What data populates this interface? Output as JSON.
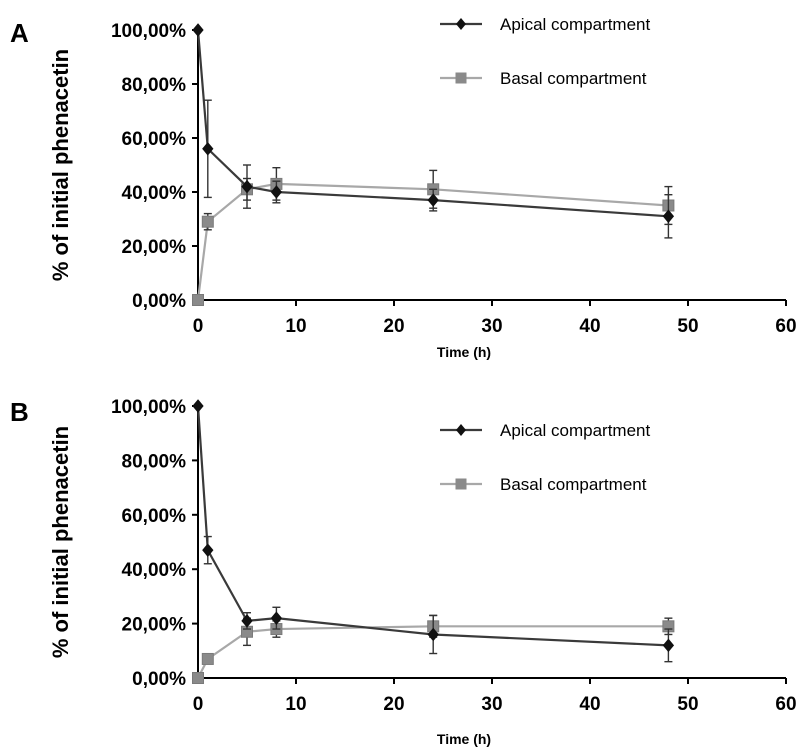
{
  "chart_data": [
    {
      "type": "line",
      "panel_label": "A",
      "xlabel": "Time (h)",
      "ylabel": "% of initial phenacetin",
      "xlim": [
        0,
        60
      ],
      "ylim": [
        0,
        100
      ],
      "x_ticks": [
        "0",
        "10",
        "20",
        "30",
        "40",
        "50",
        "60"
      ],
      "y_ticks": [
        "0,00%",
        "20,00%",
        "40,00%",
        "60,00%",
        "80,00%",
        "100,00%"
      ],
      "legend_position": "top-right",
      "grid": false,
      "series": [
        {
          "name": "Apical compartment",
          "color": "#3a3a3a",
          "marker": "diamond",
          "x": [
            0,
            1,
            5,
            8,
            24,
            48
          ],
          "values": [
            100,
            56,
            42,
            40,
            37,
            31
          ],
          "errors": [
            0,
            18,
            8,
            4,
            4,
            8
          ]
        },
        {
          "name": "Basal compartment",
          "color": "#a8a8a8",
          "marker": "square",
          "x": [
            0,
            1,
            5,
            8,
            24,
            48
          ],
          "values": [
            0,
            29,
            41,
            43,
            41,
            35
          ],
          "errors": [
            0,
            3,
            4,
            6,
            7,
            7
          ]
        }
      ]
    },
    {
      "type": "line",
      "panel_label": "B",
      "xlabel": "Time (h)",
      "ylabel": "% of initial phenacetin",
      "xlim": [
        0,
        60
      ],
      "ylim": [
        0,
        100
      ],
      "x_ticks": [
        "0",
        "10",
        "20",
        "30",
        "40",
        "50",
        "60"
      ],
      "y_ticks": [
        "0,00%",
        "20,00%",
        "40,00%",
        "60,00%",
        "80,00%",
        "100,00%"
      ],
      "legend_position": "top-right",
      "grid": false,
      "series": [
        {
          "name": "Apical compartment",
          "color": "#3a3a3a",
          "marker": "diamond",
          "x": [
            0,
            1,
            5,
            8,
            24,
            48
          ],
          "values": [
            100,
            47,
            21,
            22,
            16,
            12
          ],
          "errors": [
            0,
            5,
            3,
            4,
            7,
            6
          ]
        },
        {
          "name": "Basal compartment",
          "color": "#a8a8a8",
          "marker": "square",
          "x": [
            0,
            1,
            5,
            8,
            24,
            48
          ],
          "values": [
            0,
            7,
            17,
            18,
            19,
            19
          ],
          "errors": [
            0,
            1,
            5,
            3,
            4,
            3
          ]
        }
      ]
    }
  ]
}
